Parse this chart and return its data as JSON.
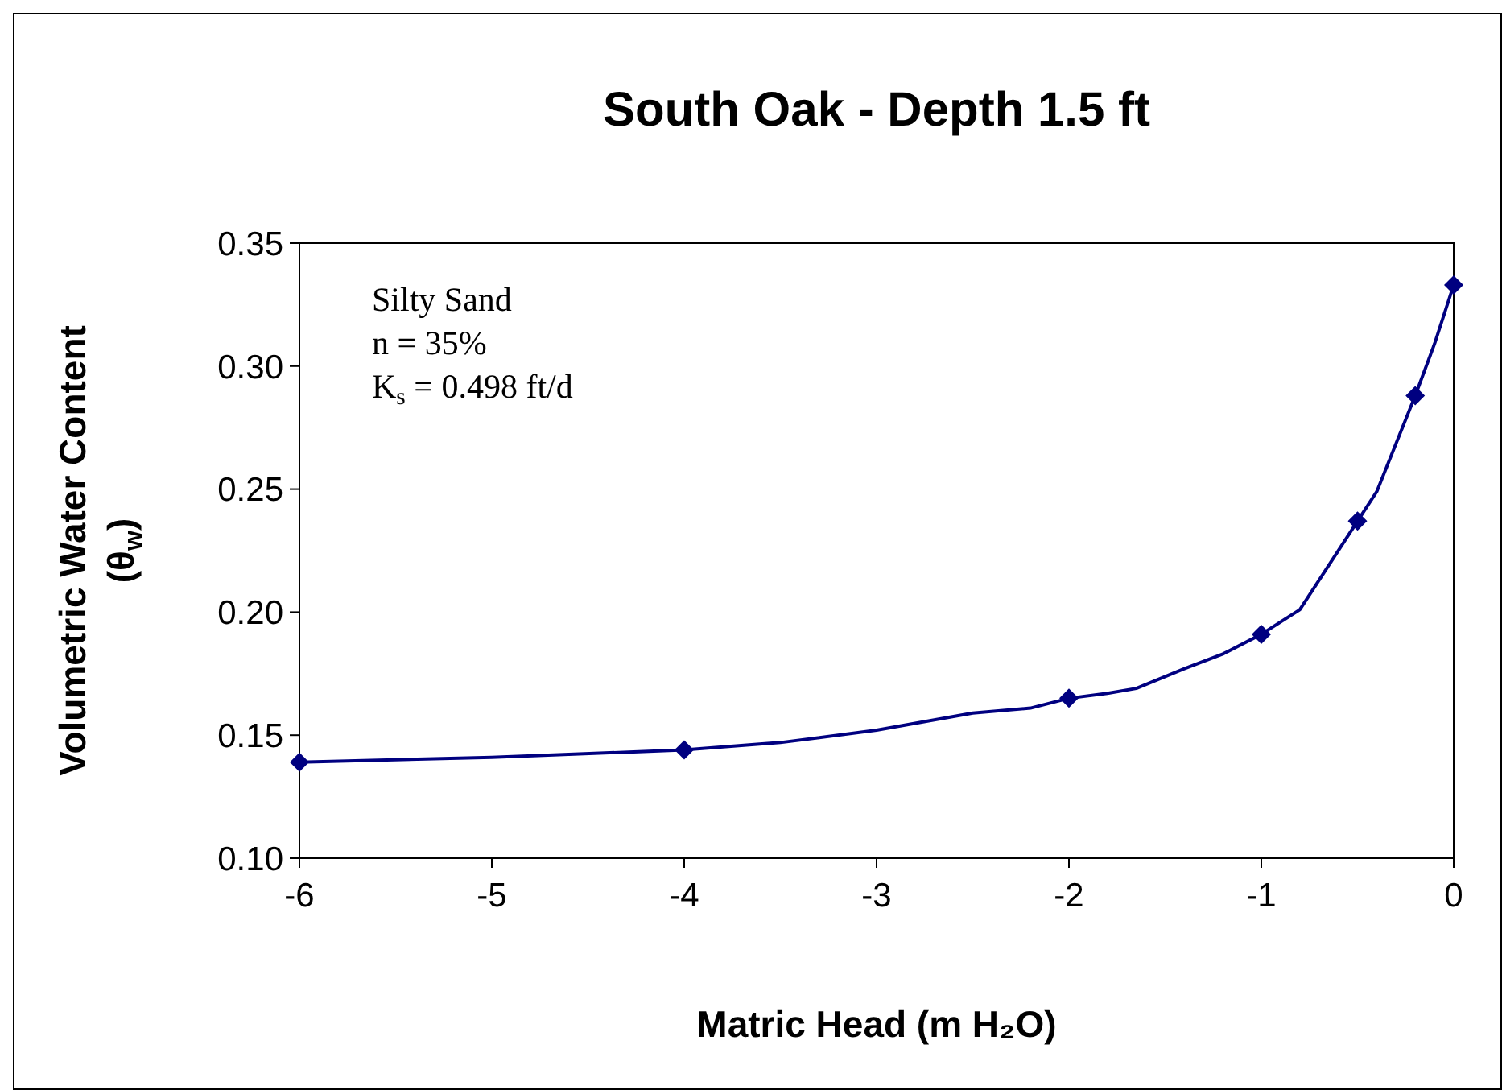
{
  "chart_data": {
    "type": "line",
    "title": "South Oak - Depth 1.5 ft",
    "xlabel": "Matric Head (m H₂O)",
    "ylabel": "Volumetric Water Content (θ$_{w}$)",
    "xlim": [
      -6,
      0
    ],
    "xticks": [
      -6,
      -5,
      -4,
      -3,
      -2,
      -1,
      0
    ],
    "ylim": [
      0.1,
      0.35
    ],
    "yticks": [
      {
        "value": 0.1,
        "label": "0.10"
      },
      {
        "value": 0.15,
        "label": "0.15"
      },
      {
        "value": 0.2,
        "label": "0.20"
      },
      {
        "value": 0.25,
        "label": "0.25"
      },
      {
        "value": 0.3,
        "label": "0.30"
      },
      {
        "value": 0.35,
        "label": "0.35"
      }
    ],
    "grid": false,
    "annotations": [
      "Silty Sand",
      "n = 35%",
      "K$_{s}$ = 0.498 ft/d"
    ],
    "series": [
      {
        "color": "#000080",
        "marker": "none",
        "x": [
          -6,
          -5,
          -4,
          -3.5,
          -3,
          -2.5,
          -2.2,
          -2,
          -1.8,
          -1.65,
          -1.4,
          -1.2,
          -1,
          -0.8,
          -0.5,
          -0.4,
          -0.2,
          -0.1,
          0
        ],
        "values": [
          0.139,
          0.141,
          0.144,
          0.147,
          0.152,
          0.159,
          0.161,
          0.165,
          0.167,
          0.169,
          0.177,
          0.183,
          0.191,
          0.201,
          0.237,
          0.249,
          0.288,
          0.309,
          0.333
        ]
      },
      {
        "type": "scatter",
        "color": "#000080",
        "marker": "diamond",
        "x": [
          -6,
          -4,
          -2,
          -1,
          -0.5,
          -0.2,
          0
        ],
        "values": [
          0.139,
          0.144,
          0.165,
          0.191,
          0.237,
          0.288,
          0.333
        ]
      }
    ]
  }
}
